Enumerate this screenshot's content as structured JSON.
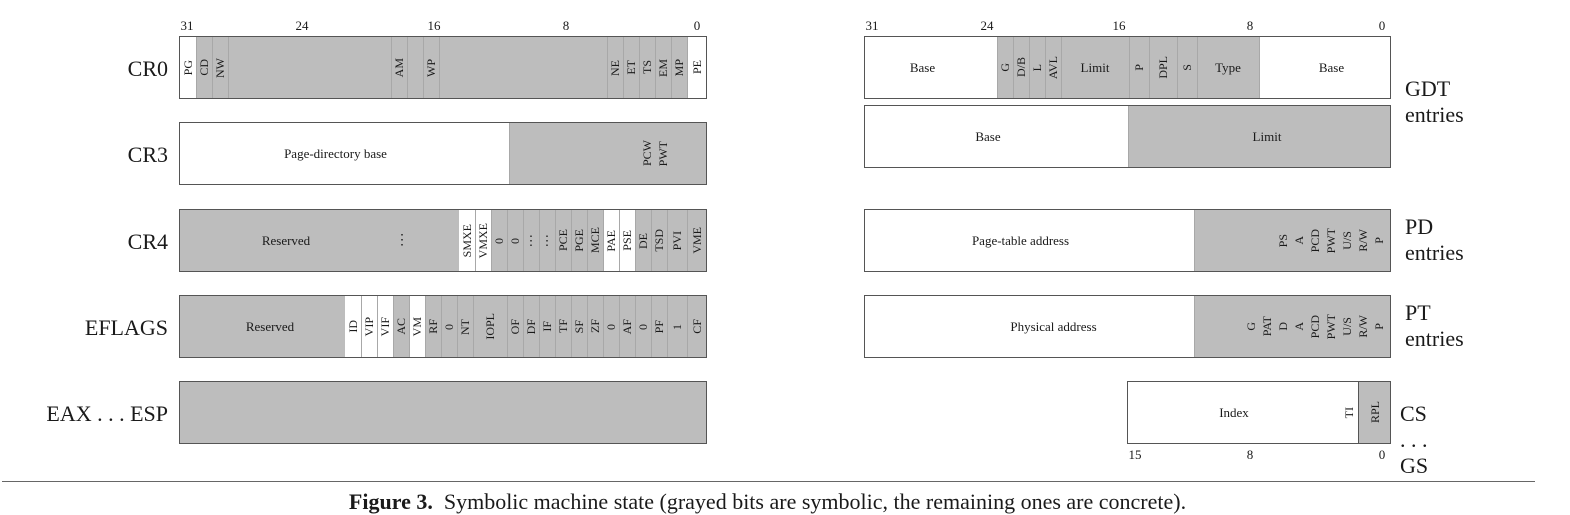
{
  "colors": {
    "symbolic": "#bdbdbd",
    "concrete": "#ffffff",
    "border": "#555555"
  },
  "left_ticks": [
    "31",
    "24",
    "16",
    "8",
    "0"
  ],
  "right_ticks_top": [
    "31",
    "24",
    "16",
    "8",
    "0"
  ],
  "right_ticks_bottom": [
    "15",
    "8",
    "0"
  ],
  "registers": {
    "cr0": {
      "name": "CR0",
      "bits": [
        "PG",
        "CD",
        "NW",
        "AM",
        "WP",
        "NE",
        "ET",
        "TS",
        "EM",
        "MP",
        "PE"
      ]
    },
    "cr3": {
      "name": "CR3",
      "base": "Page-directory base",
      "bits": [
        "PCW",
        "PWT"
      ]
    },
    "cr4": {
      "name": "CR4",
      "reserved": "Reserved",
      "dots": "⋮",
      "bits": [
        "SMXE",
        "VMXE",
        "0",
        "0",
        "⋮",
        "⋮",
        "PCE",
        "PGE",
        "MCE",
        "PAE",
        "PSE",
        "DE",
        "TSD",
        "PVI",
        "VME"
      ]
    },
    "eflags": {
      "name": "EFLAGS",
      "reserved": "Reserved",
      "bits": [
        "ID",
        "VIP",
        "VIF",
        "AC",
        "VM",
        "RF",
        "0",
        "NT",
        "IOPL",
        "OF",
        "DF",
        "IF",
        "TF",
        "SF",
        "ZF",
        "0",
        "AF",
        "0",
        "PF",
        "1",
        "CF"
      ]
    },
    "gprs": {
      "name": "EAX . . . ESP"
    }
  },
  "tables": {
    "gdt": {
      "name_line1": "GDT",
      "name_line2": "entries",
      "row1": {
        "base_left": "Base",
        "bits": [
          "G",
          "D/B",
          "L",
          "AVL"
        ],
        "limit": "Limit",
        "p": "P",
        "dpl": "DPL",
        "s": "S",
        "type": "Type",
        "base_right": "Base"
      },
      "row2": {
        "base": "Base",
        "limit": "Limit"
      }
    },
    "pd": {
      "name_line1": "PD",
      "name_line2": "entries",
      "addr": "Page-table address",
      "bits": [
        "PS",
        "A",
        "PCD",
        "PWT",
        "U/S",
        "R/W",
        "P"
      ]
    },
    "pt": {
      "name_line1": "PT",
      "name_line2": "entries",
      "addr": "Physical address",
      "bits": [
        "G",
        "PAT",
        "D",
        "A",
        "PCD",
        "PWT",
        "U/S",
        "R/W",
        "P"
      ]
    },
    "seg": {
      "name": "CS . . . GS",
      "index": "Index",
      "ti": "TI",
      "rpl": "RPL"
    }
  },
  "caption": {
    "label": "Figure 3.",
    "text": "Symbolic machine state (grayed bits are symbolic, the remaining ones are concrete)."
  }
}
